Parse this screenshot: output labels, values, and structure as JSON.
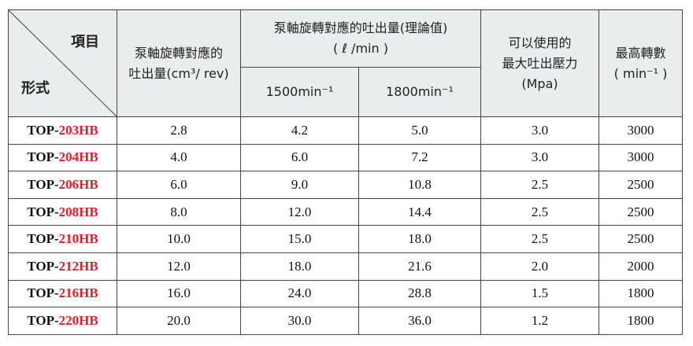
{
  "header": {
    "corner_top": "項目",
    "corner_bottom": "形式",
    "displacement": [
      "泵軸旋轉對應的",
      "吐出量(cm³/ rev)"
    ],
    "flow": [
      "泵軸旋轉對應的吐出量(理論值)",
      "( ℓ /min )"
    ],
    "flow_1500": "1500min⁻¹",
    "flow_1800": "1800min⁻¹",
    "pressure": [
      "可以使用的",
      "最大吐出壓力",
      "(Mpa)"
    ],
    "speed": [
      "最高轉數",
      "( min⁻¹ )"
    ]
  },
  "table": {
    "rows": [
      {
        "model_prefix": "TOP-",
        "model_code": "203HB",
        "cells": [
          "2.8",
          "4.2",
          "5.0",
          "3.0",
          "3000"
        ]
      },
      {
        "model_prefix": "TOP-",
        "model_code": "204HB",
        "cells": [
          "4.0",
          "6.0",
          "7.2",
          "3.0",
          "3000"
        ]
      },
      {
        "model_prefix": "TOP-",
        "model_code": "206HB",
        "cells": [
          "6.0",
          "9.0",
          "10.8",
          "2.5",
          "2500"
        ]
      },
      {
        "model_prefix": "TOP-",
        "model_code": "208HB",
        "cells": [
          "8.0",
          "12.0",
          "14.4",
          "2.5",
          "2500"
        ]
      },
      {
        "model_prefix": "TOP-",
        "model_code": "210HB",
        "cells": [
          "10.0",
          "15.0",
          "18.0",
          "2.5",
          "2500"
        ]
      },
      {
        "model_prefix": "TOP-",
        "model_code": "212HB",
        "cells": [
          "12.0",
          "18.0",
          "21.6",
          "2.0",
          "2000"
        ]
      },
      {
        "model_prefix": "TOP-",
        "model_code": "216HB",
        "cells": [
          "16.0",
          "24.0",
          "28.8",
          "1.5",
          "1800"
        ]
      },
      {
        "model_prefix": "TOP-",
        "model_code": "220HB",
        "cells": [
          "20.0",
          "30.0",
          "36.0",
          "1.2",
          "1800"
        ]
      }
    ]
  }
}
